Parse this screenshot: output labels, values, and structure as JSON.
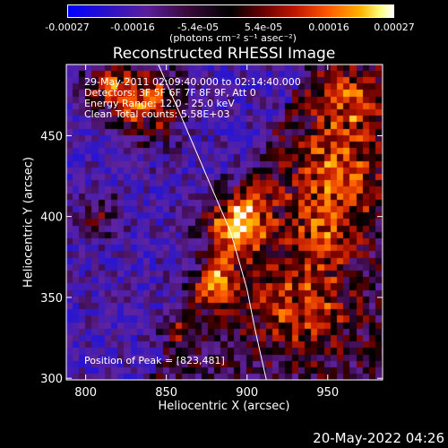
{
  "colorbar": {
    "tick_labels": [
      "-0.00027",
      "-0.00016",
      "-5.4e-05",
      "5.4e-05",
      "0.00016",
      "0.00027"
    ],
    "unit_label": "(photons cm⁻² s⁻¹ asec⁻²)"
  },
  "overlay": {
    "line1": "29-May-2011 02:09:40.000 to 02:14:40.000",
    "line2": "Detectors: 3F 5F 6F 7F 8F 9F, Att 0",
    "line3": "Energy Range: 12.0 - 25.0 keV",
    "line4": "Clean    Total counts: 5.58E+03",
    "peak": "Position of Peak = [823,481]"
  },
  "date_stamp": "20-May-2022 04:26",
  "chart_data": {
    "type": "heatmap",
    "title": "Reconstructed RHESSI Image",
    "xlabel": "Heliocentric X (arcsec)",
    "ylabel": "Heliocentric Y (arcsec)",
    "xlim": [
      788,
      984
    ],
    "ylim": [
      299,
      494
    ],
    "xticks": [
      800,
      850,
      900,
      950
    ],
    "yticks": [
      300,
      350,
      400,
      450
    ],
    "color_range": [
      -0.00027,
      0.00027
    ],
    "limb_curve": {
      "x": [
        845,
        860,
        875,
        890,
        900,
        905,
        912
      ],
      "y": [
        494,
        460,
        425,
        390,
        355,
        330,
        299
      ]
    },
    "peak": [
      823,
      481
    ]
  }
}
